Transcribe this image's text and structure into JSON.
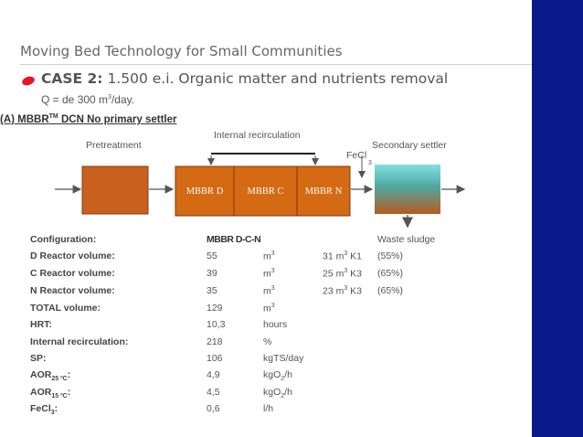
{
  "slide": {
    "title": "Moving Bed Technology for Small Communities",
    "case_label": "CASE 2:",
    "case_text": " 1.500 e.i. Organic matter and nutrients removal",
    "q_text": "Q = de 300 m",
    "q_sup": "3",
    "q_tail": "/day.",
    "subhead_main": "(A) MBBR",
    "subhead_sup": "TM",
    "subhead_tail": " DCN No primary settler"
  },
  "diagram": {
    "internal_recirculation": "Internal recirculation",
    "pretreatment": "Pretreatment",
    "secondary_settler": "Secondary settler",
    "fecl": "FeCl",
    "fecl_sub": "3",
    "reactor_d": "MBBR D",
    "reactor_c": "MBBR C",
    "reactor_n": "MBBR N",
    "waste_sludge": "Waste sludge",
    "colors": {
      "pretreat": "#c8601e",
      "reactor": "#d46a14",
      "settler_top": "#7fe0e0",
      "settler_bottom": "#b85a1e",
      "sidebar": "#0a1a8a"
    }
  },
  "table": {
    "configuration_label": "Configuration:",
    "configuration_value": "MBBR D-C-N",
    "rows": [
      {
        "label": "D Reactor volume:",
        "value": "55",
        "unit": "m",
        "unit_sup": "3",
        "extra": "31 m",
        "extra_sup": "3",
        "extra_tail": " K1",
        "pct": "(55%)"
      },
      {
        "label": "C Reactor volume:",
        "value": "39",
        "unit": "m",
        "unit_sup": "3",
        "extra": "25 m",
        "extra_sup": "3",
        "extra_tail": " K3",
        "pct": "(65%)"
      },
      {
        "label": "N Reactor volume:",
        "value": "35",
        "unit": "m",
        "unit_sup": "3",
        "extra": "23 m",
        "extra_sup": "3",
        "extra_tail": " K3",
        "pct": "(65%)"
      },
      {
        "label": "TOTAL volume:",
        "value": "129",
        "unit": "m",
        "unit_sup": "3"
      },
      {
        "label": "HRT:",
        "value": "10,3",
        "unit": "hours"
      },
      {
        "label": "Internal recirculation:",
        "value": "218",
        "unit": "%"
      },
      {
        "label": "SP:",
        "value": "106",
        "unit": "kgTS/day"
      },
      {
        "label": "AOR",
        "label_sub": "25 ºC",
        "label_tail": ":",
        "value": "4,9",
        "unit": "kgO",
        "unit_sub": "2",
        "unit_tail": "/h"
      },
      {
        "label": "AOR",
        "label_sub": "15 ºC",
        "label_tail": ":",
        "value": "4,5",
        "unit": "kgO",
        "unit_sub": "2",
        "unit_tail": "/h"
      },
      {
        "label": "FeCl",
        "label_sub": "3",
        "label_tail": ":",
        "value": "0,6",
        "unit": "l/h"
      }
    ]
  }
}
